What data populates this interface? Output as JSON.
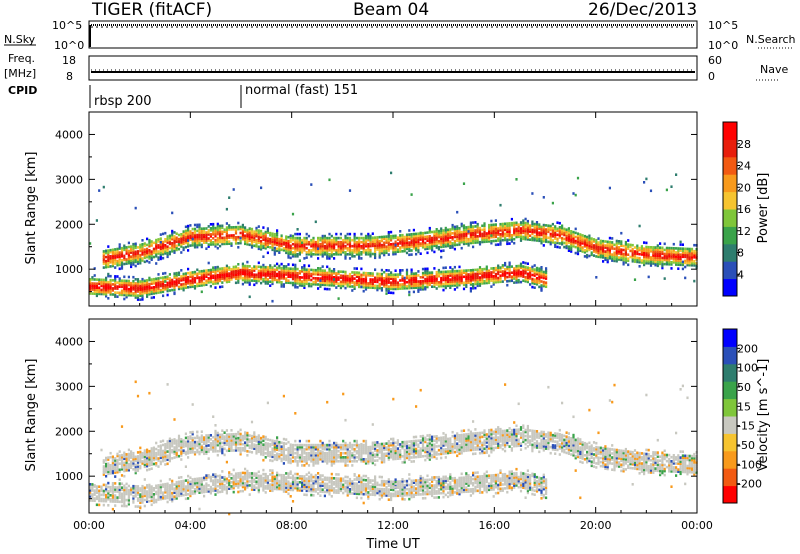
{
  "header": {
    "radar": "TIGER (fitACF)",
    "beam": "Beam 04",
    "date": "26/Dec/2013"
  },
  "top_panels": {
    "nsky_label": "N.Sky",
    "nsky_ticks": [
      "10^5",
      "10^0"
    ],
    "nsearch_label": "N.Search",
    "nsearch_ticks": [
      "10^5",
      "10^0"
    ],
    "freq_label_1": "Freq.",
    "freq_label_2": "[MHz]",
    "freq_ticks": [
      "18",
      "8"
    ],
    "nave_label": "Nave",
    "nave_ticks": [
      "60",
      "0"
    ],
    "cpid_label": "CPID",
    "cpid_segments": [
      {
        "label": "rbsp 200",
        "start_hour": 0
      },
      {
        "label": "normal (fast) 151",
        "start_hour": 6
      }
    ]
  },
  "chart_data": [
    {
      "type": "heatmap",
      "title": "",
      "ylabel": "Slant Range [km]",
      "xlabel": "",
      "y_ticks": [
        "1000",
        "2000",
        "3000",
        "4000"
      ],
      "ylim": [
        180,
        4500
      ],
      "x_ticks": [
        "00:00",
        "04:00",
        "08:00",
        "12:00",
        "16:00",
        "20:00",
        "00:00"
      ],
      "xlim_hours": [
        0,
        24
      ],
      "colorbar": {
        "label": "Power [dB]",
        "ticks": [
          "4",
          "8",
          "12",
          "16",
          "20",
          "24",
          "28"
        ],
        "range": [
          0,
          30
        ],
        "colors": [
          "#0000ff",
          "#2a4fb8",
          "#2e7d6e",
          "#3aa34a",
          "#7fc63a",
          "#f6c430",
          "#f89a1c",
          "#f25a12",
          "#e81e0c",
          "#ff0000"
        ]
      },
      "echo_bands": [
        {
          "desc": "lower",
          "points": [
            [
              0,
              650
            ],
            [
              2,
              600
            ],
            [
              4,
              800
            ],
            [
              6,
              950
            ],
            [
              9,
              850
            ],
            [
              12,
              750
            ],
            [
              15,
              850
            ],
            [
              17,
              950
            ],
            [
              18,
              800
            ]
          ],
          "halfwidth": 180,
          "peak_db": 28
        },
        {
          "desc": "upper",
          "points": [
            [
              0.5,
              1250
            ],
            [
              2,
              1400
            ],
            [
              4,
              1750
            ],
            [
              6,
              1800
            ],
            [
              8,
              1550
            ],
            [
              11,
              1550
            ],
            [
              13,
              1650
            ],
            [
              15,
              1800
            ],
            [
              17,
              1900
            ],
            [
              18.5,
              1800
            ],
            [
              20,
              1500
            ],
            [
              22,
              1350
            ],
            [
              24,
              1300
            ]
          ],
          "halfwidth": 200,
          "peak_db": 25
        }
      ]
    },
    {
      "type": "heatmap",
      "title": "",
      "ylabel": "Slant Range [km]",
      "xlabel": "Time UT",
      "y_ticks": [
        "1000",
        "2000",
        "3000",
        "4000"
      ],
      "ylim": [
        180,
        4500
      ],
      "x_ticks": [
        "00:00",
        "04:00",
        "08:00",
        "12:00",
        "16:00",
        "20:00",
        "00:00"
      ],
      "xlim_hours": [
        0,
        24
      ],
      "colorbar": {
        "label": "Velocity [m s^-1]",
        "ticks": [
          "200",
          "100",
          "50",
          "15",
          "-15",
          "-50",
          "-100",
          "-200"
        ],
        "range": [
          -250,
          250
        ],
        "colors": [
          "#ff0000",
          "#f25a12",
          "#f89a1c",
          "#f6c430",
          "#c8c8c0",
          "#7fc63a",
          "#3aa34a",
          "#2e7d6e",
          "#2a4fb8",
          "#0000ff"
        ]
      },
      "echo_bands": [
        {
          "desc": "lower",
          "points": [
            [
              0,
              650
            ],
            [
              2,
              600
            ],
            [
              4,
              800
            ],
            [
              6,
              950
            ],
            [
              9,
              850
            ],
            [
              12,
              750
            ],
            [
              15,
              850
            ],
            [
              17,
              950
            ],
            [
              18,
              800
            ]
          ],
          "halfwidth": 180
        },
        {
          "desc": "upper",
          "points": [
            [
              0.5,
              1250
            ],
            [
              2,
              1400
            ],
            [
              4,
              1750
            ],
            [
              6,
              1800
            ],
            [
              8,
              1550
            ],
            [
              11,
              1550
            ],
            [
              13,
              1650
            ],
            [
              15,
              1800
            ],
            [
              17,
              1900
            ],
            [
              18.5,
              1800
            ],
            [
              20,
              1500
            ],
            [
              22,
              1350
            ],
            [
              24,
              1300
            ]
          ],
          "halfwidth": 200
        }
      ]
    }
  ]
}
